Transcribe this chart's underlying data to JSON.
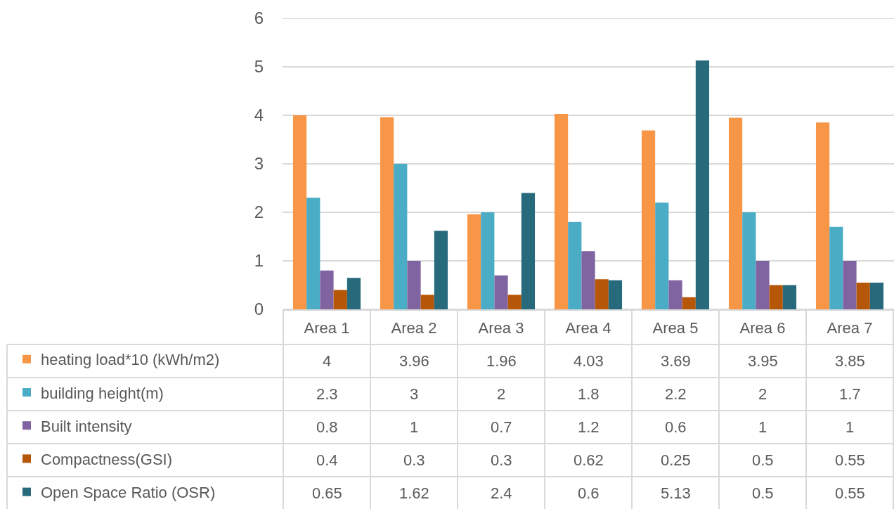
{
  "chart_data": {
    "type": "bar",
    "categories": [
      "Area 1",
      "Area 2",
      "Area 3",
      "Area 4",
      "Area 5",
      "Area 6",
      "Area 7"
    ],
    "series": [
      {
        "name": "heating load*10 (kWh/m2)",
        "color": "#f79646",
        "values": [
          4,
          3.96,
          1.96,
          4.03,
          3.69,
          3.95,
          3.85
        ]
      },
      {
        "name": "building height(m)",
        "color": "#4bacc6",
        "values": [
          2.3,
          3,
          2,
          1.8,
          2.2,
          2,
          1.7
        ]
      },
      {
        "name": "Built intensity",
        "color": "#8064a2",
        "values": [
          0.8,
          1,
          0.7,
          1.2,
          0.6,
          1,
          1
        ]
      },
      {
        "name": "Compactness(GSI)",
        "color": "#b65708",
        "values": [
          0.4,
          0.3,
          0.3,
          0.62,
          0.25,
          0.5,
          0.55
        ]
      },
      {
        "name": "Open Space Ratio (OSR)",
        "color": "#276a7c",
        "values": [
          0.65,
          1.62,
          2.4,
          0.6,
          5.13,
          0.5,
          0.55
        ]
      }
    ],
    "ylim": [
      0,
      6
    ],
    "yticks": [
      0,
      1,
      2,
      3,
      4,
      5,
      6
    ],
    "grid": "y",
    "legend": "bottom left",
    "data_labels": true
  }
}
